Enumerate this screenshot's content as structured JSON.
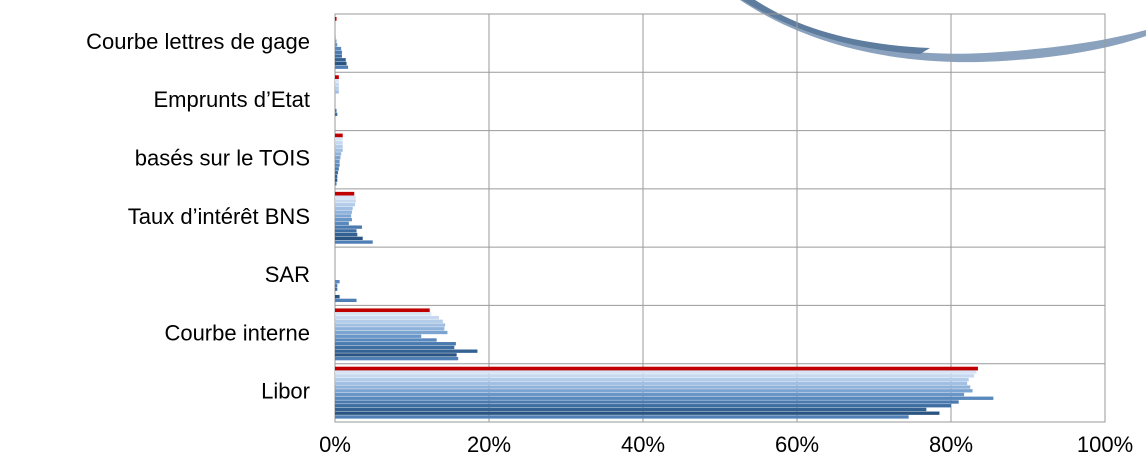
{
  "chart_data": {
    "type": "barh",
    "categories": [
      "Courbe lettres de gage",
      "Emprunts d’Etat",
      "basés sur le TOIS",
      "Taux d’intérêt BNS",
      "SAR",
      "Courbe interne",
      "Libor"
    ],
    "series": [
      {
        "color": "#c00000",
        "values": [
          0.2,
          0.5,
          1.0,
          2.5,
          0,
          12.3,
          83.5
        ]
      },
      {
        "color": "#d6e4f5",
        "values": [
          0,
          0.5,
          1.0,
          2.7,
          0,
          12.5,
          83.3
        ]
      },
      {
        "color": "#c6d9f0",
        "values": [
          0,
          0.5,
          1.0,
          2.7,
          0,
          13.5,
          83.0
        ]
      },
      {
        "color": "#b3cce9",
        "values": [
          0,
          0.5,
          1.0,
          2.6,
          0,
          14.0,
          82.3
        ]
      },
      {
        "color": "#a1bfe2",
        "values": [
          0,
          0.5,
          1.0,
          2.3,
          0,
          14.3,
          82.1
        ]
      },
      {
        "color": "#8eb2da",
        "values": [
          0.1,
          0,
          0.8,
          2.2,
          0,
          14.2,
          82.5
        ]
      },
      {
        "color": "#7ba4d1",
        "values": [
          0.2,
          0,
          0.7,
          2.1,
          0,
          14.6,
          82.8
        ]
      },
      {
        "color": "#6996c7",
        "values": [
          0.3,
          0,
          0.6,
          2.2,
          0,
          11.2,
          81.7
        ]
      },
      {
        "color": "#5888bc",
        "values": [
          0.8,
          0,
          0.6,
          1.8,
          0.6,
          13.2,
          85.5
        ]
      },
      {
        "color": "#4a7aaf",
        "values": [
          0.9,
          0.2,
          0.5,
          3.5,
          0.3,
          15.7,
          81.0
        ]
      },
      {
        "color": "#3e6da1",
        "values": [
          0.9,
          0.3,
          0.4,
          2.8,
          0.3,
          15.5,
          80.0
        ]
      },
      {
        "color": "#336192",
        "values": [
          1.4,
          0,
          0.3,
          2.9,
          0,
          18.5,
          76.8
        ]
      },
      {
        "color": "#2a5583",
        "values": [
          1.5,
          0,
          0.3,
          3.6,
          0.6,
          15.8,
          78.5
        ]
      },
      {
        "color": "#4f7fb5",
        "values": [
          1.7,
          0,
          0.2,
          4.9,
          2.8,
          16.0,
          74.5
        ]
      }
    ],
    "xlim": [
      0,
      100
    ],
    "xticks": [
      {
        "value": 0,
        "label": "0%"
      },
      {
        "value": 20,
        "label": "20%"
      },
      {
        "value": 40,
        "label": "40%"
      },
      {
        "value": 60,
        "label": "60%"
      },
      {
        "value": 80,
        "label": "80%"
      },
      {
        "value": 100,
        "label": "100%"
      }
    ],
    "grid": true
  }
}
